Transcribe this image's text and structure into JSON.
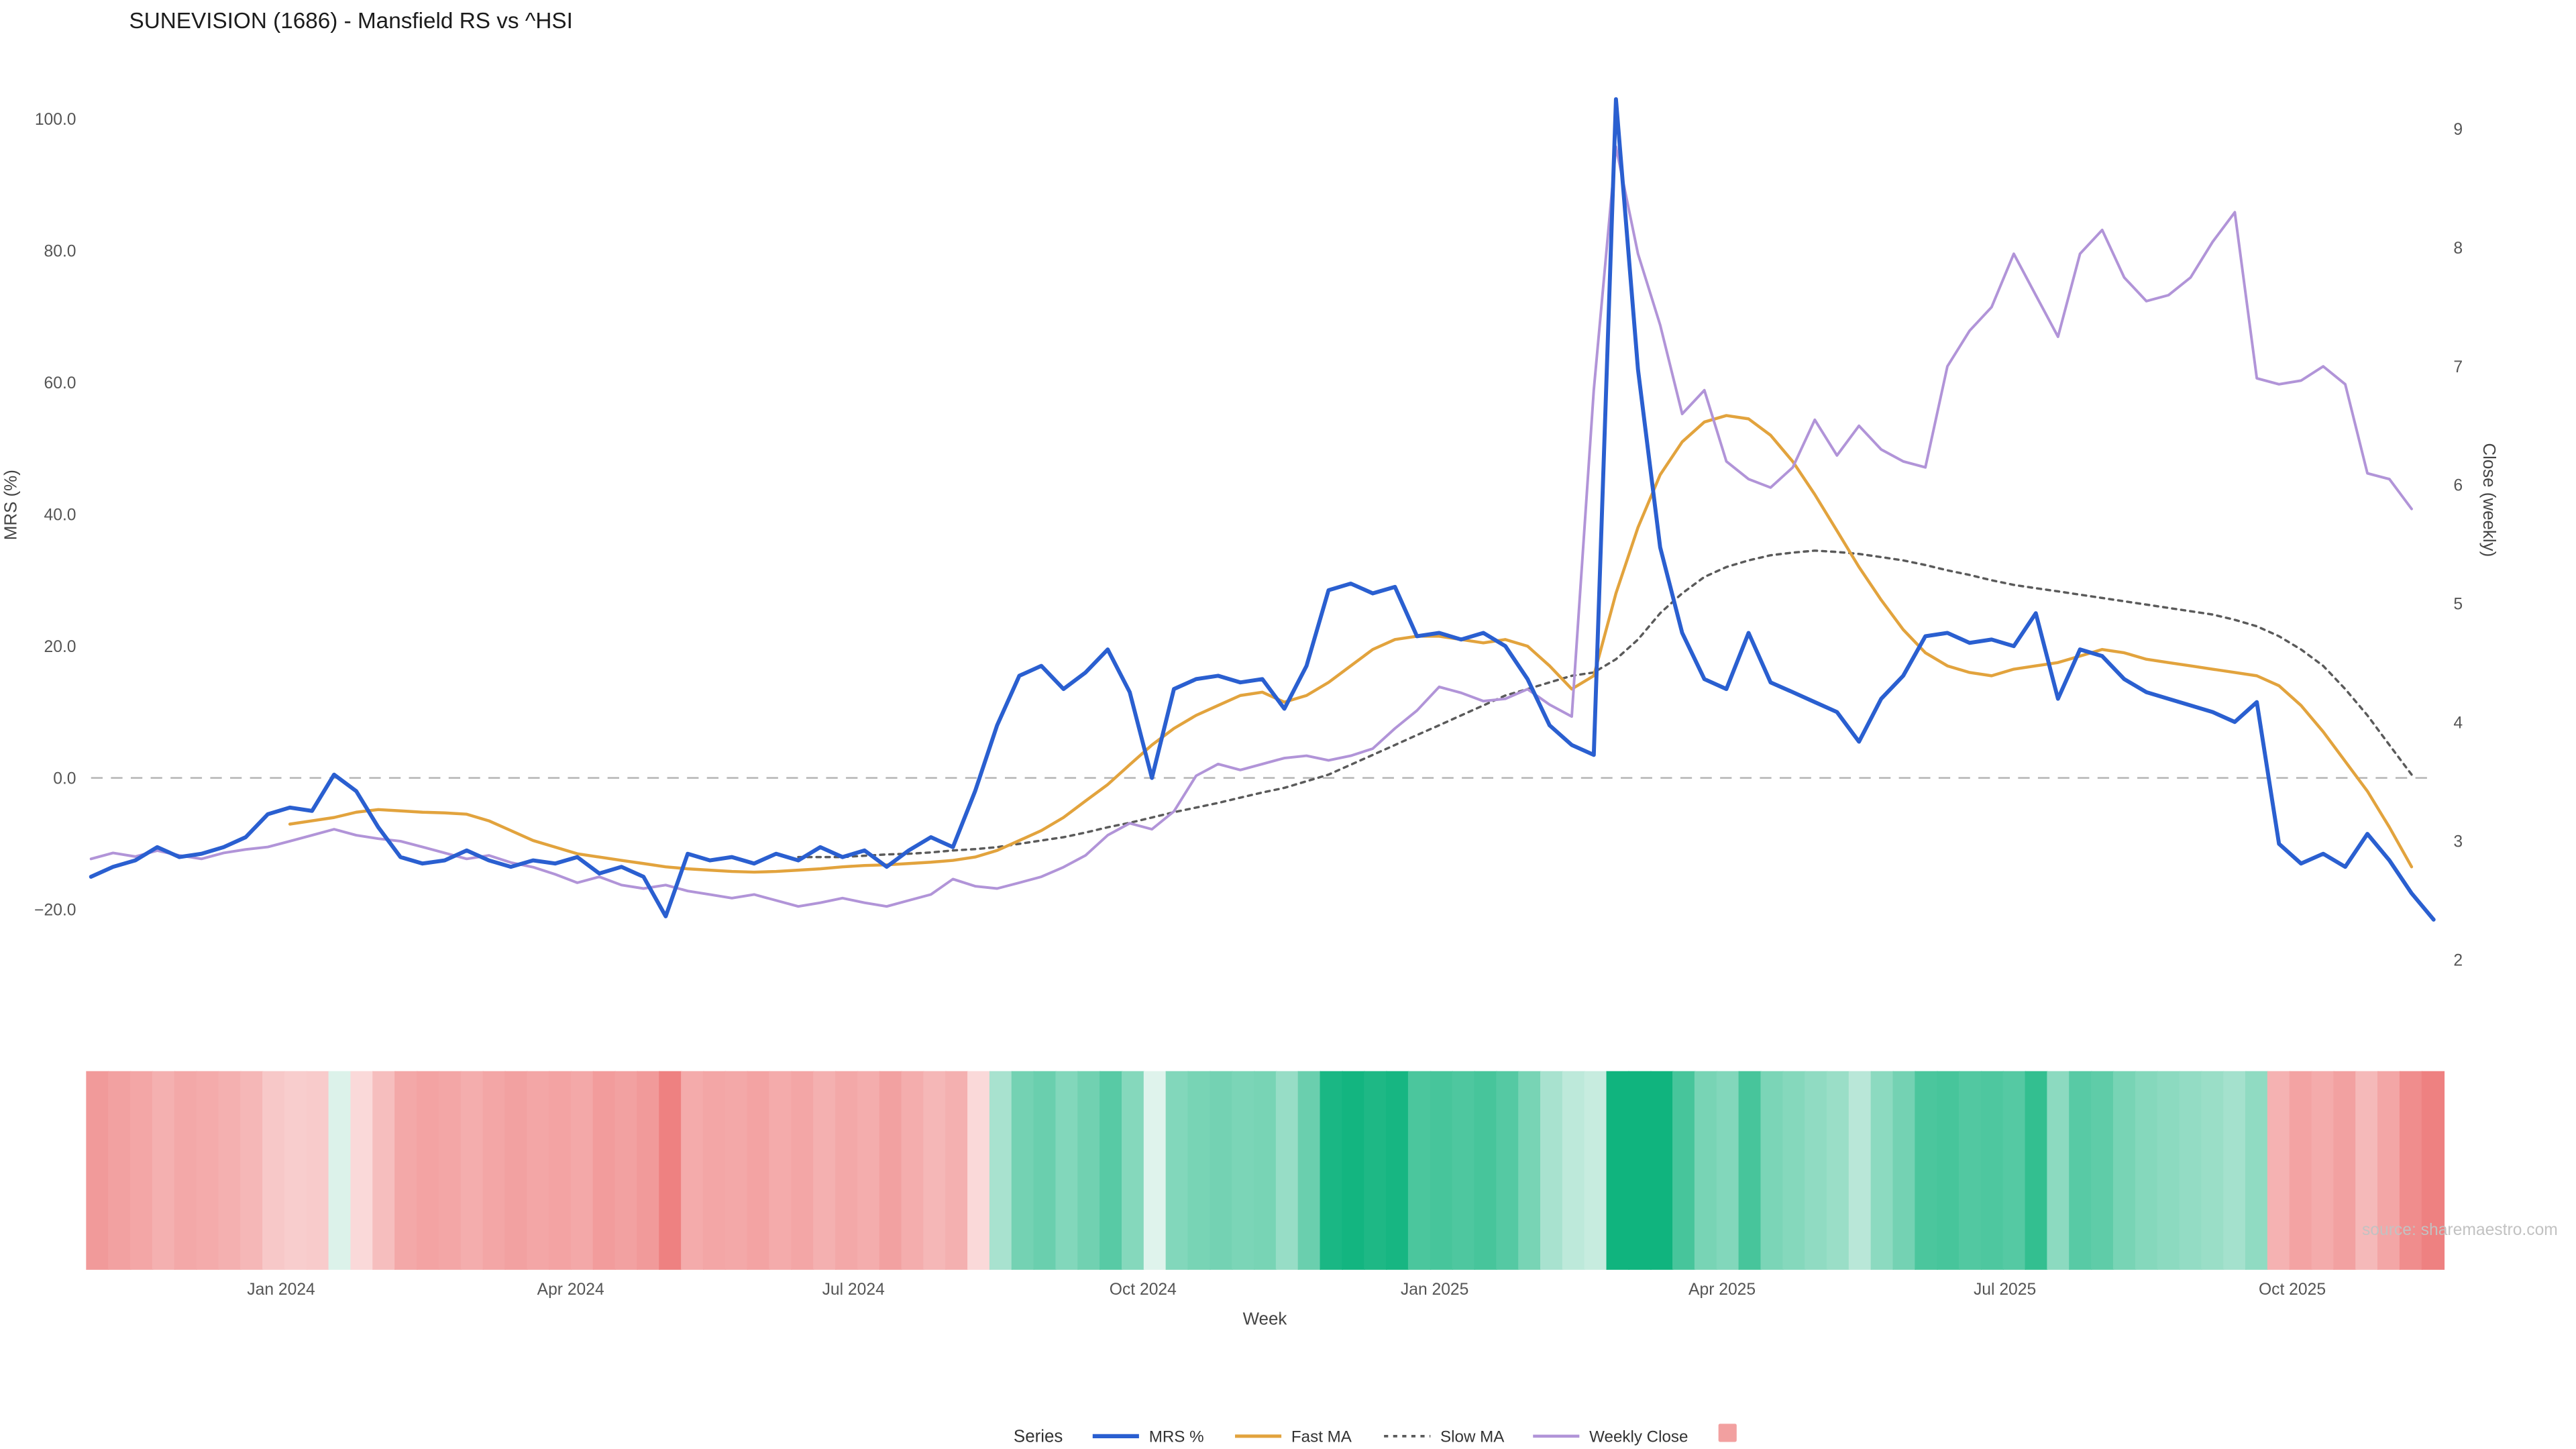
{
  "title": "SUNEVISION (1686) - Mansfield RS vs ^HSI",
  "y_left_label": "MRS (%)",
  "y_right_label": "Close (weekly)",
  "x_label": "Week",
  "source": "source: sharemaestro.com",
  "legend": {
    "title": "Series",
    "items": [
      "MRS %",
      "Fast MA",
      "Slow MA",
      "Weekly Close"
    ],
    "swatch_color": "#f2a0a0"
  },
  "chart_data": {
    "type": "line",
    "x_unit": "week",
    "x_ticks": [
      {
        "label": "Jan 2024",
        "w": 8.6
      },
      {
        "label": "Apr 2024",
        "w": 21.7
      },
      {
        "label": "Jul 2024",
        "w": 34.5
      },
      {
        "label": "Oct 2024",
        "w": 47.6
      },
      {
        "label": "Jan 2025",
        "w": 60.8
      },
      {
        "label": "Apr 2025",
        "w": 73.8
      },
      {
        "label": "Jul 2025",
        "w": 86.6
      },
      {
        "label": "Oct 2025",
        "w": 99.6
      }
    ],
    "y_left_ticks": [
      {
        "label": "100.0",
        "v": 100
      },
      {
        "label": "80.0",
        "v": 80
      },
      {
        "label": "60.0",
        "v": 60
      },
      {
        "label": "40.0",
        "v": 40
      },
      {
        "label": "20.0",
        "v": 20
      },
      {
        "label": "0.0",
        "v": 0
      },
      {
        "label": "−20.0",
        "v": -20
      }
    ],
    "y_right_ticks": [
      {
        "label": "9",
        "v": 9
      },
      {
        "label": "8",
        "v": 8
      },
      {
        "label": "7",
        "v": 7
      },
      {
        "label": "6",
        "v": 6
      },
      {
        "label": "5",
        "v": 5
      },
      {
        "label": "4",
        "v": 4
      },
      {
        "label": "3",
        "v": 3
      },
      {
        "label": "2",
        "v": 2
      }
    ],
    "ylim_left": [
      -35.7,
      108
    ],
    "ylim_right": [
      1.55,
      9.53
    ],
    "zero_line_left_value": 0,
    "series": [
      {
        "name": "MRS %",
        "axis": "left",
        "color": "#2a5fd0",
        "style": "solid",
        "values": [
          -15,
          -13.5,
          -12.5,
          -10.5,
          -12,
          -11.5,
          -10.5,
          -9,
          -5.5,
          -4.5,
          -5,
          0.5,
          -2,
          -7.5,
          -12,
          -13,
          -12.5,
          -11,
          -12.5,
          -13.5,
          -12.5,
          -13,
          -12,
          -14.5,
          -13.5,
          -15,
          -21,
          -11.5,
          -12.5,
          -12,
          -13,
          -11.5,
          -12.5,
          -10.5,
          -12,
          -11,
          -13.5,
          -11,
          -9,
          -10.5,
          -2,
          8,
          15.5,
          17,
          13.5,
          16,
          19.5,
          13,
          0,
          13.5,
          15,
          15.5,
          14.5,
          15,
          10.5,
          17,
          28.5,
          29.5,
          28,
          29,
          21.5,
          22,
          21,
          22,
          20,
          15,
          8,
          5,
          3.5,
          103,
          62,
          35,
          22,
          15,
          13.5,
          22,
          14.5,
          13,
          11.5,
          10,
          5.5,
          12,
          15.5,
          21.5,
          22,
          20.5,
          21,
          20,
          25,
          12,
          19.5,
          18.5,
          15,
          13,
          12,
          11,
          10,
          8.5,
          11.5,
          -10,
          -13,
          -11.5,
          -13.5,
          -8.5,
          -12.5,
          -17.5,
          -21.5
        ]
      },
      {
        "name": "Fast MA",
        "axis": "left",
        "color": "#e2a33d",
        "style": "solid",
        "values": [
          null,
          null,
          null,
          null,
          null,
          null,
          null,
          null,
          null,
          -7,
          -6.5,
          -6,
          -5.2,
          -4.8,
          -5,
          -5.2,
          -5.3,
          -5.5,
          -6.5,
          -8,
          -9.5,
          -10.5,
          -11.5,
          -12,
          -12.5,
          -13,
          -13.5,
          -13.8,
          -14,
          -14.2,
          -14.3,
          -14.2,
          -14,
          -13.8,
          -13.5,
          -13.3,
          -13.2,
          -13,
          -12.8,
          -12.5,
          -12,
          -11,
          -9.5,
          -8,
          -6,
          -3.5,
          -1,
          2,
          5,
          7.5,
          9.5,
          11,
          12.5,
          13,
          11.5,
          12.5,
          14.5,
          17,
          19.5,
          21,
          21.5,
          21.5,
          21,
          20.5,
          21,
          20,
          17,
          13.5,
          15.5,
          28,
          38,
          46,
          51,
          54,
          55,
          54.5,
          52,
          48,
          43,
          37.5,
          32,
          27,
          22.5,
          19,
          17,
          16,
          15.5,
          16.5,
          17,
          17.5,
          18.5,
          19.5,
          19,
          18,
          17.5,
          17,
          16.5,
          16,
          15.5,
          14,
          11,
          7,
          2.5,
          -2,
          -7.5,
          -13.5
        ]
      },
      {
        "name": "Slow MA",
        "axis": "left",
        "color": "#5a5a5a",
        "style": "dotted",
        "values": [
          null,
          null,
          null,
          null,
          null,
          null,
          null,
          null,
          null,
          null,
          null,
          null,
          null,
          null,
          null,
          null,
          null,
          null,
          null,
          null,
          null,
          null,
          null,
          null,
          null,
          null,
          null,
          null,
          null,
          null,
          null,
          null,
          -12,
          -12,
          -12,
          -11.8,
          -11.6,
          -11.5,
          -11.3,
          -11,
          -10.8,
          -10.5,
          -10,
          -9.5,
          -9,
          -8.3,
          -7.5,
          -6.8,
          -6,
          -5.2,
          -4.5,
          -3.8,
          -3,
          -2.2,
          -1.5,
          -0.5,
          0.5,
          2,
          3.5,
          5,
          6.5,
          8,
          9.5,
          11,
          12.5,
          13.5,
          14.5,
          15.5,
          16,
          18,
          21,
          25,
          28,
          30.5,
          32,
          33,
          33.8,
          34.2,
          34.5,
          34.3,
          34,
          33.5,
          33,
          32.3,
          31.5,
          30.8,
          30,
          29.3,
          28.8,
          28.3,
          27.8,
          27.3,
          26.8,
          26.3,
          25.8,
          25.3,
          24.8,
          24,
          23,
          21.5,
          19.5,
          17,
          13.5,
          9.5,
          5,
          0.5
        ]
      },
      {
        "name": "Weekly Close",
        "axis": "right",
        "color": "#b194d8",
        "style": "solid",
        "values": [
          2.85,
          2.9,
          2.87,
          2.92,
          2.88,
          2.85,
          2.9,
          2.93,
          2.95,
          3.0,
          3.05,
          3.1,
          3.05,
          3.02,
          3.0,
          2.95,
          2.9,
          2.85,
          2.88,
          2.82,
          2.78,
          2.72,
          2.65,
          2.7,
          2.63,
          2.6,
          2.63,
          2.58,
          2.55,
          2.52,
          2.55,
          2.5,
          2.45,
          2.48,
          2.52,
          2.48,
          2.45,
          2.5,
          2.55,
          2.68,
          2.62,
          2.6,
          2.65,
          2.7,
          2.78,
          2.88,
          3.05,
          3.15,
          3.1,
          3.25,
          3.55,
          3.65,
          3.6,
          3.65,
          3.7,
          3.72,
          3.68,
          3.72,
          3.78,
          3.95,
          4.1,
          4.3,
          4.25,
          4.18,
          4.2,
          4.28,
          4.15,
          4.05,
          6.8,
          8.85,
          7.95,
          7.35,
          6.6,
          6.8,
          6.2,
          6.05,
          5.98,
          6.15,
          6.55,
          6.25,
          6.5,
          6.3,
          6.2,
          6.15,
          7.0,
          7.3,
          7.5,
          7.95,
          7.6,
          7.25,
          7.95,
          8.15,
          7.75,
          7.55,
          7.6,
          7.75,
          8.05,
          8.3,
          6.9,
          6.85,
          6.88,
          7.0,
          6.85,
          6.1,
          6.05,
          5.8
        ]
      }
    ],
    "heatmap": {
      "basis": "MRS %",
      "positive_clamp": 30,
      "negative_clamp": -20,
      "positive_color": "#10b47e",
      "negative_color": "#ee8181",
      "low_pos_color": "#dff3ec",
      "low_neg_color": "#fbe3e3"
    }
  }
}
